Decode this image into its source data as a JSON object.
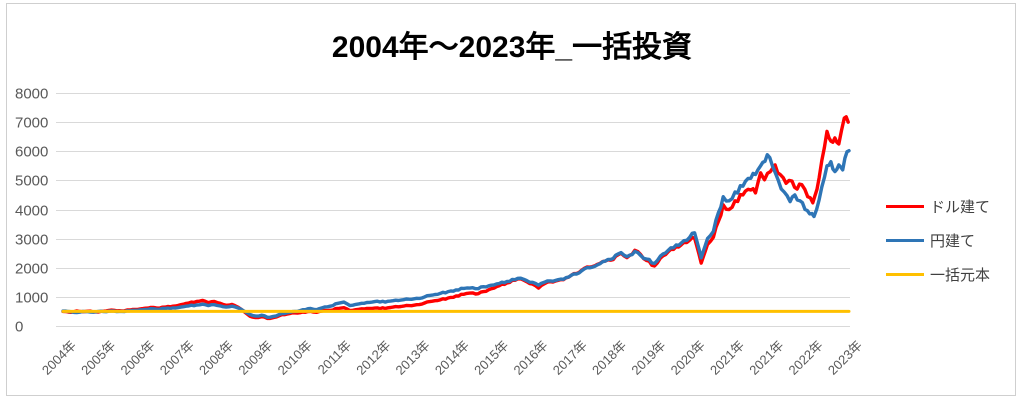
{
  "chart_data": {
    "type": "line",
    "title": "2004年～2023年_一括投資",
    "x_axis": {
      "tick_labels": [
        "2004年",
        "2005年",
        "2006年",
        "2007年",
        "2008年",
        "2009年",
        "2010年",
        "2011年",
        "2012年",
        "2013年",
        "2014年",
        "2015年",
        "2016年",
        "2017年",
        "2018年",
        "2019年",
        "2020年",
        "2021年",
        "2021年",
        "2022年",
        "2023年"
      ],
      "x_unit": "tick-index"
    },
    "y_axis": {
      "min": 0,
      "max": 8000,
      "step": 1000,
      "tick_labels": [
        "0",
        "1000",
        "2000",
        "3000",
        "4000",
        "5000",
        "6000",
        "7000",
        "8000"
      ]
    },
    "grid": true,
    "legend_position": "right",
    "series": [
      {
        "id": "usd",
        "name": "ドル建て",
        "color": "#ff0000",
        "width": 3.4,
        "jitter": true,
        "points": [
          [
            0,
            500
          ],
          [
            0.2,
            470
          ],
          [
            0.35,
            520
          ],
          [
            0.5,
            490
          ],
          [
            0.7,
            510
          ],
          [
            0.9,
            480
          ],
          [
            1.1,
            520
          ],
          [
            1.3,
            540
          ],
          [
            1.5,
            520
          ],
          [
            1.7,
            550
          ],
          [
            1.9,
            570
          ],
          [
            2.1,
            610
          ],
          [
            2.3,
            640
          ],
          [
            2.45,
            610
          ],
          [
            2.6,
            650
          ],
          [
            2.8,
            680
          ],
          [
            3,
            730
          ],
          [
            3.2,
            790
          ],
          [
            3.4,
            840
          ],
          [
            3.55,
            880
          ],
          [
            3.7,
            800
          ],
          [
            3.85,
            840
          ],
          [
            4,
            780
          ],
          [
            4.15,
            710
          ],
          [
            4.3,
            740
          ],
          [
            4.45,
            650
          ],
          [
            4.6,
            500
          ],
          [
            4.75,
            340
          ],
          [
            4.9,
            290
          ],
          [
            5.05,
            320
          ],
          [
            5.2,
            260
          ],
          [
            5.35,
            290
          ],
          [
            5.5,
            350
          ],
          [
            5.7,
            410
          ],
          [
            5.9,
            450
          ],
          [
            6.1,
            480
          ],
          [
            6.3,
            500
          ],
          [
            6.45,
            470
          ],
          [
            6.6,
            520
          ],
          [
            6.8,
            540
          ],
          [
            7,
            600
          ],
          [
            7.15,
            630
          ],
          [
            7.3,
            530
          ],
          [
            7.45,
            560
          ],
          [
            7.6,
            590
          ],
          [
            7.8,
            600
          ],
          [
            8,
            620
          ],
          [
            8.2,
            600
          ],
          [
            8.4,
            650
          ],
          [
            8.6,
            670
          ],
          [
            8.8,
            700
          ],
          [
            9,
            730
          ],
          [
            9.2,
            790
          ],
          [
            9.4,
            850
          ],
          [
            9.6,
            900
          ],
          [
            9.8,
            960
          ],
          [
            10,
            1030
          ],
          [
            10.2,
            1090
          ],
          [
            10.35,
            1130
          ],
          [
            10.5,
            1100
          ],
          [
            10.7,
            1180
          ],
          [
            10.9,
            1280
          ],
          [
            11.1,
            1380
          ],
          [
            11.3,
            1480
          ],
          [
            11.5,
            1570
          ],
          [
            11.65,
            1620
          ],
          [
            11.8,
            1520
          ],
          [
            11.95,
            1440
          ],
          [
            12.1,
            1300
          ],
          [
            12.25,
            1450
          ],
          [
            12.4,
            1520
          ],
          [
            12.6,
            1570
          ],
          [
            12.8,
            1650
          ],
          [
            13,
            1800
          ],
          [
            13.2,
            1920
          ],
          [
            13.4,
            2020
          ],
          [
            13.6,
            2120
          ],
          [
            13.8,
            2230
          ],
          [
            14,
            2280
          ],
          [
            14.2,
            2500
          ],
          [
            14.35,
            2350
          ],
          [
            14.55,
            2600
          ],
          [
            14.7,
            2450
          ],
          [
            14.85,
            2250
          ],
          [
            15.05,
            2060
          ],
          [
            15.2,
            2330
          ],
          [
            15.4,
            2550
          ],
          [
            15.6,
            2720
          ],
          [
            15.8,
            2870
          ],
          [
            15.95,
            2950
          ],
          [
            16.07,
            3020
          ],
          [
            16.24,
            2160
          ],
          [
            16.4,
            2800
          ],
          [
            16.55,
            3050
          ],
          [
            16.68,
            3600
          ],
          [
            16.8,
            4160
          ],
          [
            16.95,
            4000
          ],
          [
            17.1,
            4300
          ],
          [
            17.3,
            4500
          ],
          [
            17.5,
            4670
          ],
          [
            17.62,
            4570
          ],
          [
            17.75,
            5260
          ],
          [
            17.85,
            5020
          ],
          [
            18,
            5300
          ],
          [
            18.12,
            5530
          ],
          [
            18.25,
            5200
          ],
          [
            18.4,
            4900
          ],
          [
            18.55,
            4980
          ],
          [
            18.68,
            4700
          ],
          [
            18.8,
            4850
          ],
          [
            18.95,
            4440
          ],
          [
            19.08,
            4230
          ],
          [
            19.24,
            5080
          ],
          [
            19.44,
            6680
          ],
          [
            19.54,
            6350
          ],
          [
            19.64,
            6460
          ],
          [
            19.74,
            6250
          ],
          [
            19.88,
            7140
          ],
          [
            19.98,
            7000
          ]
        ]
      },
      {
        "id": "jpy",
        "name": "円建て",
        "color": "#2e75b6",
        "width": 3.4,
        "jitter": true,
        "points": [
          [
            0,
            510
          ],
          [
            0.2,
            490
          ],
          [
            0.35,
            460
          ],
          [
            0.5,
            500
          ],
          [
            0.7,
            480
          ],
          [
            0.9,
            500
          ],
          [
            1.1,
            490
          ],
          [
            1.3,
            510
          ],
          [
            1.5,
            500
          ],
          [
            1.7,
            520
          ],
          [
            1.9,
            540
          ],
          [
            2.1,
            570
          ],
          [
            2.3,
            590
          ],
          [
            2.45,
            570
          ],
          [
            2.6,
            600
          ],
          [
            2.8,
            620
          ],
          [
            3,
            650
          ],
          [
            3.2,
            690
          ],
          [
            3.4,
            720
          ],
          [
            3.55,
            750
          ],
          [
            3.7,
            700
          ],
          [
            3.85,
            730
          ],
          [
            4,
            690
          ],
          [
            4.15,
            650
          ],
          [
            4.3,
            680
          ],
          [
            4.45,
            620
          ],
          [
            4.6,
            520
          ],
          [
            4.75,
            400
          ],
          [
            4.9,
            340
          ],
          [
            5.05,
            370
          ],
          [
            5.2,
            300
          ],
          [
            5.35,
            330
          ],
          [
            5.5,
            390
          ],
          [
            5.7,
            450
          ],
          [
            5.9,
            500
          ],
          [
            6.1,
            560
          ],
          [
            6.3,
            600
          ],
          [
            6.45,
            560
          ],
          [
            6.6,
            630
          ],
          [
            6.8,
            680
          ],
          [
            7,
            780
          ],
          [
            7.15,
            820
          ],
          [
            7.3,
            700
          ],
          [
            7.45,
            740
          ],
          [
            7.6,
            780
          ],
          [
            7.8,
            810
          ],
          [
            8,
            850
          ],
          [
            8.2,
            820
          ],
          [
            8.4,
            870
          ],
          [
            8.6,
            890
          ],
          [
            8.8,
            920
          ],
          [
            9,
            950
          ],
          [
            9.2,
            1000
          ],
          [
            9.4,
            1060
          ],
          [
            9.6,
            1120
          ],
          [
            9.8,
            1180
          ],
          [
            10,
            1240
          ],
          [
            10.2,
            1290
          ],
          [
            10.35,
            1300
          ],
          [
            10.5,
            1280
          ],
          [
            10.7,
            1350
          ],
          [
            10.9,
            1400
          ],
          [
            11.1,
            1460
          ],
          [
            11.3,
            1530
          ],
          [
            11.5,
            1590
          ],
          [
            11.65,
            1640
          ],
          [
            11.8,
            1560
          ],
          [
            11.95,
            1500
          ],
          [
            12.1,
            1400
          ],
          [
            12.25,
            1500
          ],
          [
            12.4,
            1550
          ],
          [
            12.6,
            1590
          ],
          [
            12.8,
            1660
          ],
          [
            13,
            1790
          ],
          [
            13.2,
            1900
          ],
          [
            13.4,
            2000
          ],
          [
            13.6,
            2100
          ],
          [
            13.8,
            2230
          ],
          [
            14,
            2320
          ],
          [
            14.2,
            2520
          ],
          [
            14.35,
            2380
          ],
          [
            14.55,
            2560
          ],
          [
            14.7,
            2420
          ],
          [
            14.85,
            2300
          ],
          [
            15.05,
            2150
          ],
          [
            15.2,
            2400
          ],
          [
            15.4,
            2600
          ],
          [
            15.6,
            2780
          ],
          [
            15.8,
            2930
          ],
          [
            15.95,
            3050
          ],
          [
            16.07,
            3200
          ],
          [
            16.24,
            2340
          ],
          [
            16.4,
            3000
          ],
          [
            16.55,
            3250
          ],
          [
            16.68,
            3900
          ],
          [
            16.8,
            4440
          ],
          [
            16.95,
            4300
          ],
          [
            17.1,
            4600
          ],
          [
            17.3,
            4800
          ],
          [
            17.5,
            5070
          ],
          [
            17.62,
            5200
          ],
          [
            17.75,
            5500
          ],
          [
            17.92,
            5880
          ],
          [
            18.05,
            5500
          ],
          [
            18.2,
            5000
          ],
          [
            18.35,
            4600
          ],
          [
            18.5,
            4270
          ],
          [
            18.62,
            4500
          ],
          [
            18.75,
            4300
          ],
          [
            18.88,
            4000
          ],
          [
            19,
            3850
          ],
          [
            19.11,
            3760
          ],
          [
            19.24,
            4330
          ],
          [
            19.44,
            5500
          ],
          [
            19.54,
            5640
          ],
          [
            19.64,
            5300
          ],
          [
            19.74,
            5530
          ],
          [
            19.84,
            5360
          ],
          [
            19.95,
            5980
          ],
          [
            20,
            6020
          ]
        ]
      },
      {
        "id": "principal",
        "name": "一括元本",
        "color": "#ffc000",
        "width": 3,
        "jitter": false,
        "points": [
          [
            0,
            500
          ],
          [
            20,
            500
          ]
        ]
      }
    ]
  },
  "colors": {
    "grid": "#d9d9d9",
    "axis_text": "#595959",
    "legend_text": "#404040",
    "frame_border": "#cfcfcf",
    "background": "#ffffff"
  }
}
